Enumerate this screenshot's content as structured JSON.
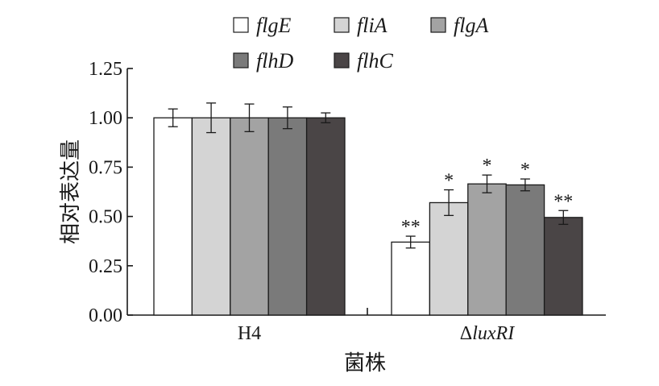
{
  "chart_data": {
    "type": "bar",
    "xlabel": "菌株",
    "ylabel": "相对表达量",
    "ylim": [
      0,
      1.25
    ],
    "yticks": [
      "0.00",
      "0.25",
      "0.50",
      "0.75",
      "1.00",
      "1.25"
    ],
    "grid": false,
    "legend_position": "top",
    "categories": [
      {
        "prefix": "",
        "italic": "",
        "plain": "H4"
      },
      {
        "prefix": "Δ",
        "italic": "luxRI",
        "plain": ""
      }
    ],
    "series": [
      {
        "name": "flgE",
        "color": "#ffffff",
        "values": [
          1.0,
          0.37
        ],
        "errors": [
          0.045,
          0.03
        ],
        "significance": [
          "",
          "**"
        ]
      },
      {
        "name": "fliA",
        "color": "#d4d4d4",
        "values": [
          1.0,
          0.57
        ],
        "errors": [
          0.075,
          0.065
        ],
        "significance": [
          "",
          "*"
        ]
      },
      {
        "name": "flgA",
        "color": "#a3a3a3",
        "values": [
          1.0,
          0.665
        ],
        "errors": [
          0.07,
          0.045
        ],
        "significance": [
          "",
          "*"
        ]
      },
      {
        "name": "flhD",
        "color": "#7a7a7a",
        "values": [
          1.0,
          0.66
        ],
        "errors": [
          0.055,
          0.03
        ],
        "significance": [
          "",
          "*"
        ]
      },
      {
        "name": "flhC",
        "color": "#4a4546",
        "values": [
          1.0,
          0.495
        ],
        "errors": [
          0.025,
          0.035
        ],
        "significance": [
          "",
          "**"
        ]
      }
    ]
  }
}
